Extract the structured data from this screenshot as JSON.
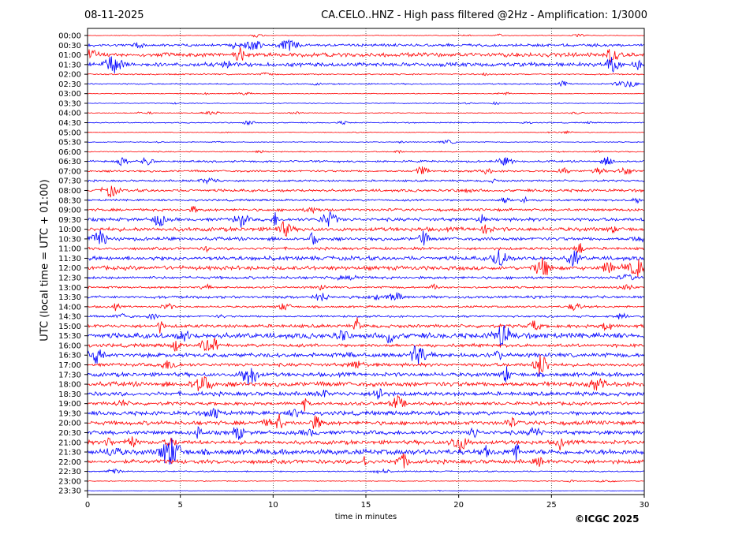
{
  "header": {
    "date": "08-11-2025",
    "station_title": "CA.CELO..HNZ - High pass filtered @2Hz - Amplification: 1/3000"
  },
  "footer": {
    "copyright": "©ICGC 2025"
  },
  "chart_data": {
    "type": "line",
    "title": "CA.CELO..HNZ - High pass filtered @2Hz - Amplification: 1/3000",
    "xlabel": "time in minutes",
    "ylabel": "UTC (local time = UTC + 01:00)",
    "xlim": [
      0,
      30
    ],
    "x_ticks": [
      0,
      5,
      10,
      15,
      20,
      25,
      30
    ],
    "grid": "vertical dotted at 5-minute ticks",
    "series_colors": [
      "#ff0000",
      "#0000ff"
    ],
    "traces": [
      {
        "label": "00:00",
        "color": "#ff0000",
        "amplitude": 0.5
      },
      {
        "label": "00:30",
        "color": "#0000ff",
        "amplitude": 2
      },
      {
        "label": "01:00",
        "color": "#ff0000",
        "amplitude": 3
      },
      {
        "label": "01:30",
        "color": "#0000ff",
        "amplitude": 3
      },
      {
        "label": "02:00",
        "color": "#ff0000",
        "amplitude": 1
      },
      {
        "label": "02:30",
        "color": "#0000ff",
        "amplitude": 1
      },
      {
        "label": "03:00",
        "color": "#ff0000",
        "amplitude": 0.6
      },
      {
        "label": "03:30",
        "color": "#0000ff",
        "amplitude": 0.6
      },
      {
        "label": "04:00",
        "color": "#ff0000",
        "amplitude": 0.6
      },
      {
        "label": "04:30",
        "color": "#0000ff",
        "amplitude": 0.8
      },
      {
        "label": "05:00",
        "color": "#ff0000",
        "amplitude": 0.5
      },
      {
        "label": "05:30",
        "color": "#0000ff",
        "amplitude": 0.6
      },
      {
        "label": "06:00",
        "color": "#ff0000",
        "amplitude": 0.8
      },
      {
        "label": "06:30",
        "color": "#0000ff",
        "amplitude": 1.5
      },
      {
        "label": "07:00",
        "color": "#ff0000",
        "amplitude": 1.5
      },
      {
        "label": "07:30",
        "color": "#0000ff",
        "amplitude": 1.5
      },
      {
        "label": "08:00",
        "color": "#ff0000",
        "amplitude": 2
      },
      {
        "label": "08:30",
        "color": "#0000ff",
        "amplitude": 1.5
      },
      {
        "label": "09:00",
        "color": "#ff0000",
        "amplitude": 2
      },
      {
        "label": "09:30",
        "color": "#0000ff",
        "amplitude": 2.5
      },
      {
        "label": "10:00",
        "color": "#ff0000",
        "amplitude": 3
      },
      {
        "label": "10:30",
        "color": "#0000ff",
        "amplitude": 2.5
      },
      {
        "label": "11:00",
        "color": "#ff0000",
        "amplitude": 2
      },
      {
        "label": "11:30",
        "color": "#0000ff",
        "amplitude": 3
      },
      {
        "label": "12:00",
        "color": "#ff0000",
        "amplitude": 3
      },
      {
        "label": "12:30",
        "color": "#0000ff",
        "amplitude": 2
      },
      {
        "label": "13:00",
        "color": "#ff0000",
        "amplitude": 1.5
      },
      {
        "label": "13:30",
        "color": "#0000ff",
        "amplitude": 2
      },
      {
        "label": "14:00",
        "color": "#ff0000",
        "amplitude": 1.5
      },
      {
        "label": "14:30",
        "color": "#0000ff",
        "amplitude": 1.5
      },
      {
        "label": "15:00",
        "color": "#ff0000",
        "amplitude": 2.5
      },
      {
        "label": "15:30",
        "color": "#0000ff",
        "amplitude": 4
      },
      {
        "label": "16:00",
        "color": "#ff0000",
        "amplitude": 2.5
      },
      {
        "label": "16:30",
        "color": "#0000ff",
        "amplitude": 3
      },
      {
        "label": "17:00",
        "color": "#ff0000",
        "amplitude": 2.5
      },
      {
        "label": "17:30",
        "color": "#0000ff",
        "amplitude": 3
      },
      {
        "label": "18:00",
        "color": "#ff0000",
        "amplitude": 3.5
      },
      {
        "label": "18:30",
        "color": "#0000ff",
        "amplitude": 3
      },
      {
        "label": "19:00",
        "color": "#ff0000",
        "amplitude": 2.5
      },
      {
        "label": "19:30",
        "color": "#0000ff",
        "amplitude": 3
      },
      {
        "label": "20:00",
        "color": "#ff0000",
        "amplitude": 3
      },
      {
        "label": "20:30",
        "color": "#0000ff",
        "amplitude": 3
      },
      {
        "label": "21:00",
        "color": "#ff0000",
        "amplitude": 3
      },
      {
        "label": "21:30",
        "color": "#0000ff",
        "amplitude": 4
      },
      {
        "label": "22:00",
        "color": "#ff0000",
        "amplitude": 3
      },
      {
        "label": "22:30",
        "color": "#0000ff",
        "amplitude": 1
      },
      {
        "label": "23:00",
        "color": "#ff0000",
        "amplitude": 0.6
      },
      {
        "label": "23:30",
        "color": "#0000ff",
        "amplitude": 0.3
      }
    ]
  }
}
